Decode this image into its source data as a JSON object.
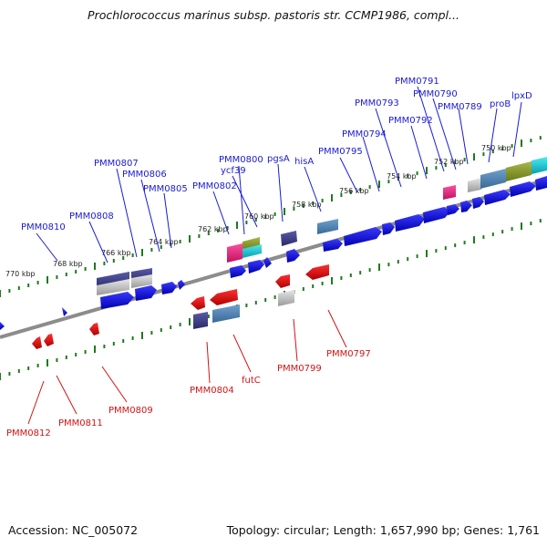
{
  "title": "Prochlorococcus marinus subsp. pastoris str. CCMP1986, compl...",
  "footer": {
    "accession": "Accession: NC_005072",
    "topology": "Topology: circular; Length: 1,657,990 bp; Genes: 1,761"
  },
  "colors": {
    "forward": "#1a1ad6",
    "reverse": "#e01010",
    "backbone": "#8c8c8c",
    "ticks": "#1e7a1e",
    "magenta": "#e0207a",
    "olive": "#8a9a28",
    "cyan": "#10c8d8",
    "steel": "#4a7fb0",
    "navy": "#3a3a80",
    "grey": "#b4b4b4"
  },
  "kbp_labels": [
    "770 kbp",
    "768 kbp",
    "766 kbp",
    "764 kbp",
    "762 kbp",
    "760 kbp",
    "758 kbp",
    "756 kbp",
    "754 kbp",
    "752 kbp",
    "750 kbp"
  ],
  "forward_genes": [
    "PMM0810",
    "PMM0808",
    "PMM0807",
    "PMM0806",
    "PMM0805",
    "PMM0802",
    "PMM0800",
    "ycf39",
    "pgsA",
    "hisA",
    "PMM0795",
    "PMM0794",
    "PMM0793",
    "PMM0792",
    "PMM0791",
    "PMM0790",
    "PMM0789",
    "proB",
    "lpxD"
  ],
  "reverse_genes": [
    "PMM0812",
    "PMM0811",
    "PMM0809",
    "PMM0804",
    "futC",
    "PMM0799",
    "PMM0797"
  ]
}
